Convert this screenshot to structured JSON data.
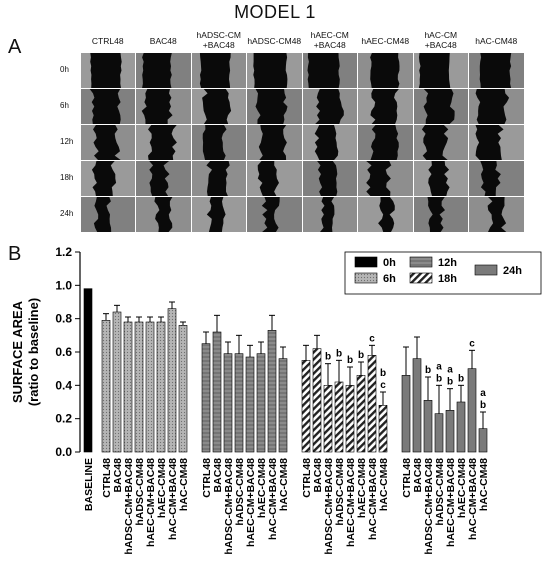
{
  "figure": {
    "title": "MODEL 1",
    "panel_a_label": "A",
    "panel_b_label": "B"
  },
  "panel_a": {
    "columns": [
      "CTRL48",
      "BAC48",
      "hADSC-CM\n+BAC48",
      "hADSC-CM48",
      "hAEC-CM\n+BAC48",
      "hAEC-CM48",
      "hAC-CM\n+BAC48",
      "hAC-CM48"
    ],
    "rows": [
      "0h",
      "6h",
      "12h",
      "18h",
      "24h"
    ]
  },
  "colors": {
    "bar_0h": "#000000",
    "bar_6h": "#b8b8b8",
    "bar_12h": "#7f7f7f",
    "bar_18h": "#ffffff",
    "bar_24h": "#7a7a7a",
    "cell_bg": "#8c8c8c",
    "wound": "#0a0a0a"
  },
  "chart_data": {
    "type": "bar",
    "ylabel": "SURFACE AREA\n(ratio to baseline)",
    "ylim": [
      0,
      1.2
    ],
    "yticks": [
      "0.0",
      "0.2",
      "0.4",
      "0.6",
      "0.8",
      "1.0",
      "1.2"
    ],
    "legend": [
      "0h",
      "6h",
      "12h",
      "18h",
      "24h"
    ],
    "legend_position": "top-right",
    "baseline": {
      "name": "BASELINE",
      "value": 0.98
    },
    "categories": [
      "CTRL48",
      "BAC48",
      "hADSC-CM+BAC48",
      "hADSC-CM48",
      "hAEC-CM+BAC48",
      "hAEC-CM48",
      "hAC-CM+BAC48",
      "hAC-CM48"
    ],
    "series": [
      {
        "name": "6h",
        "values": [
          0.79,
          0.84,
          0.78,
          0.78,
          0.78,
          0.78,
          0.86,
          0.76
        ],
        "errors": [
          0.04,
          0.04,
          0.03,
          0.03,
          0.03,
          0.03,
          0.04,
          0.02
        ],
        "letters": [
          "",
          "",
          "",
          "",
          "",
          "",
          "",
          ""
        ]
      },
      {
        "name": "12h",
        "values": [
          0.65,
          0.72,
          0.59,
          0.59,
          0.57,
          0.59,
          0.73,
          0.56
        ],
        "errors": [
          0.07,
          0.1,
          0.07,
          0.11,
          0.07,
          0.07,
          0.09,
          0.07
        ],
        "letters": [
          "",
          "",
          "",
          "",
          "",
          "",
          "",
          ""
        ]
      },
      {
        "name": "18h",
        "values": [
          0.55,
          0.62,
          0.4,
          0.42,
          0.4,
          0.46,
          0.58,
          0.28
        ],
        "errors": [
          0.09,
          0.08,
          0.13,
          0.13,
          0.11,
          0.08,
          0.06,
          0.08
        ],
        "letters": [
          "",
          "",
          "b",
          "b",
          "b",
          "b",
          "c",
          "b\nc"
        ]
      },
      {
        "name": "24h",
        "values": [
          0.46,
          0.56,
          0.31,
          0.23,
          0.25,
          0.3,
          0.5,
          0.14
        ],
        "errors": [
          0.17,
          0.13,
          0.14,
          0.17,
          0.13,
          0.1,
          0.11,
          0.1
        ],
        "letters": [
          "",
          "",
          "b",
          "a\nb",
          "a\nb",
          "b",
          "c",
          "a\nb"
        ]
      }
    ]
  }
}
